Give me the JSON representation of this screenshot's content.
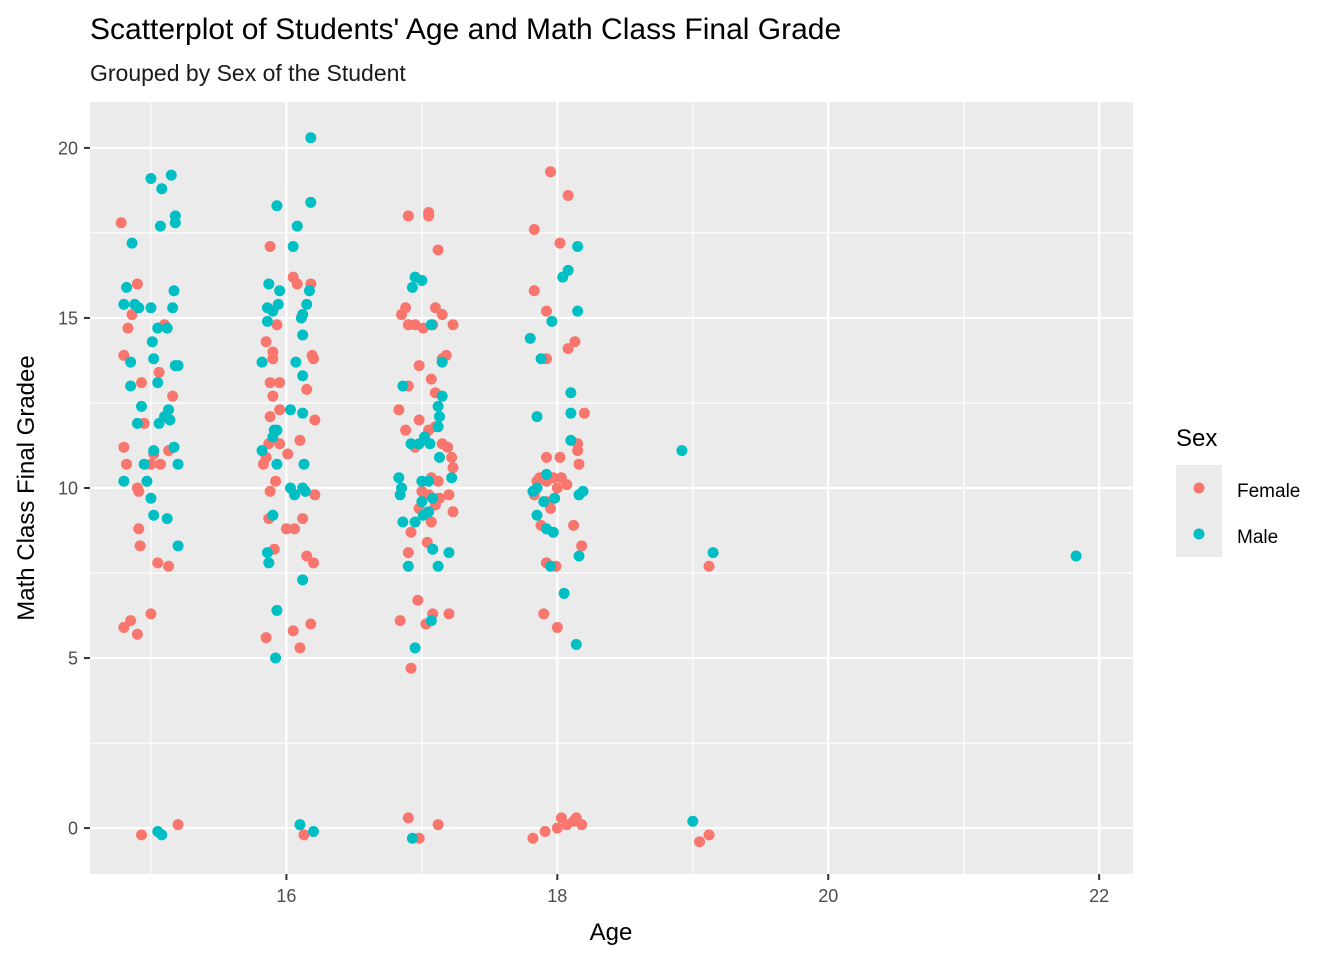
{
  "chart_data": {
    "type": "scatter",
    "title": "Scatterplot of Students' Age and Math Class Final Grade",
    "subtitle": "Grouped by Sex of the Student",
    "xlabel": "Age",
    "ylabel": "Math Class Final Gradee",
    "xlim": [
      14.55,
      22.25
    ],
    "ylim": [
      -1.35,
      21.35
    ],
    "xticks": [
      16,
      18,
      20,
      22
    ],
    "yticks": [
      0,
      5,
      10,
      15,
      20
    ],
    "grid": true,
    "legend": {
      "title": "Sex",
      "position": "right",
      "entries": [
        {
          "label": "Female",
          "color": "#F8766D"
        },
        {
          "label": "Male",
          "color": "#00BFC4"
        }
      ]
    },
    "series": [
      {
        "name": "Female",
        "color": "#F8766D",
        "points": [
          [
            14.78,
            17.8
          ],
          [
            14.86,
            15.1
          ],
          [
            14.9,
            16.0
          ],
          [
            14.83,
            14.7
          ],
          [
            15.1,
            14.8
          ],
          [
            14.8,
            13.9
          ],
          [
            15.06,
            13.4
          ],
          [
            15.16,
            12.7
          ],
          [
            14.93,
            13.1
          ],
          [
            14.95,
            11.9
          ],
          [
            14.8,
            11.2
          ],
          [
            15.02,
            11.0
          ],
          [
            15.13,
            11.1
          ],
          [
            14.82,
            10.7
          ],
          [
            15.0,
            10.7
          ],
          [
            15.07,
            10.7
          ],
          [
            14.9,
            10.0
          ],
          [
            14.91,
            9.9
          ],
          [
            14.91,
            8.8
          ],
          [
            14.92,
            8.3
          ],
          [
            15.05,
            7.8
          ],
          [
            15.13,
            7.7
          ],
          [
            14.85,
            6.1
          ],
          [
            15.0,
            6.3
          ],
          [
            14.8,
            5.9
          ],
          [
            14.9,
            5.7
          ],
          [
            14.93,
            -0.2
          ],
          [
            15.2,
            0.1
          ],
          [
            16.05,
            16.2
          ],
          [
            16.08,
            16.0
          ],
          [
            16.18,
            16.0
          ],
          [
            15.93,
            14.8
          ],
          [
            15.85,
            14.3
          ],
          [
            15.9,
            14.0
          ],
          [
            15.9,
            13.8
          ],
          [
            16.19,
            13.9
          ],
          [
            16.2,
            13.8
          ],
          [
            15.88,
            13.1
          ],
          [
            15.95,
            13.1
          ],
          [
            15.9,
            12.7
          ],
          [
            16.15,
            12.9
          ],
          [
            15.88,
            12.1
          ],
          [
            15.95,
            12.3
          ],
          [
            16.21,
            12.0
          ],
          [
            15.87,
            11.3
          ],
          [
            15.95,
            11.3
          ],
          [
            16.1,
            11.4
          ],
          [
            15.85,
            10.9
          ],
          [
            16.01,
            11.0
          ],
          [
            15.83,
            10.7
          ],
          [
            15.92,
            10.2
          ],
          [
            15.88,
            9.9
          ],
          [
            16.21,
            9.8
          ],
          [
            15.87,
            9.1
          ],
          [
            16.12,
            9.1
          ],
          [
            16.0,
            8.8
          ],
          [
            16.06,
            8.8
          ],
          [
            15.91,
            8.2
          ],
          [
            16.15,
            8.0
          ],
          [
            16.2,
            7.8
          ],
          [
            16.18,
            6.0
          ],
          [
            16.05,
            5.8
          ],
          [
            15.85,
            5.6
          ],
          [
            16.1,
            5.3
          ],
          [
            16.13,
            -0.2
          ],
          [
            15.88,
            17.1
          ],
          [
            17.05,
            18.1
          ],
          [
            16.9,
            18.0
          ],
          [
            17.05,
            18.0
          ],
          [
            17.12,
            17.0
          ],
          [
            16.88,
            15.3
          ],
          [
            16.85,
            15.1
          ],
          [
            17.1,
            15.3
          ],
          [
            17.15,
            15.1
          ],
          [
            17.08,
            14.8
          ],
          [
            17.23,
            14.8
          ],
          [
            16.9,
            14.8
          ],
          [
            17.01,
            14.7
          ],
          [
            16.95,
            14.8
          ],
          [
            17.18,
            13.9
          ],
          [
            16.98,
            13.6
          ],
          [
            17.15,
            13.8
          ],
          [
            17.07,
            13.2
          ],
          [
            16.9,
            13.0
          ],
          [
            17.1,
            12.8
          ],
          [
            16.83,
            12.3
          ],
          [
            16.98,
            12.0
          ],
          [
            17.1,
            11.8
          ],
          [
            17.05,
            11.7
          ],
          [
            16.88,
            11.7
          ],
          [
            16.95,
            11.2
          ],
          [
            17.15,
            11.3
          ],
          [
            17.19,
            11.2
          ],
          [
            17.22,
            10.9
          ],
          [
            17.23,
            10.6
          ],
          [
            17.07,
            10.3
          ],
          [
            17.12,
            10.2
          ],
          [
            17.0,
            9.9
          ],
          [
            17.05,
            9.8
          ],
          [
            17.13,
            9.7
          ],
          [
            17.2,
            9.8
          ],
          [
            17.1,
            9.5
          ],
          [
            16.98,
            9.4
          ],
          [
            17.23,
            9.3
          ],
          [
            17.07,
            9.0
          ],
          [
            16.92,
            8.7
          ],
          [
            17.04,
            8.4
          ],
          [
            16.9,
            8.1
          ],
          [
            16.97,
            6.7
          ],
          [
            16.84,
            6.1
          ],
          [
            17.03,
            6.0
          ],
          [
            17.08,
            6.3
          ],
          [
            17.2,
            6.3
          ],
          [
            16.92,
            4.7
          ],
          [
            16.9,
            0.3
          ],
          [
            17.12,
            0.1
          ],
          [
            16.98,
            -0.3
          ],
          [
            17.95,
            19.3
          ],
          [
            18.08,
            18.6
          ],
          [
            17.83,
            17.6
          ],
          [
            18.02,
            17.2
          ],
          [
            17.83,
            15.8
          ],
          [
            17.92,
            15.2
          ],
          [
            18.13,
            14.3
          ],
          [
            18.08,
            14.1
          ],
          [
            17.92,
            13.8
          ],
          [
            18.2,
            12.2
          ],
          [
            18.15,
            11.3
          ],
          [
            18.15,
            11.1
          ],
          [
            17.92,
            10.9
          ],
          [
            18.02,
            10.9
          ],
          [
            17.87,
            10.3
          ],
          [
            17.92,
            10.2
          ],
          [
            17.97,
            10.3
          ],
          [
            18.03,
            10.3
          ],
          [
            17.85,
            10.2
          ],
          [
            18.07,
            10.1
          ],
          [
            18.0,
            10.0
          ],
          [
            18.16,
            10.7
          ],
          [
            17.83,
            9.8
          ],
          [
            17.92,
            9.6
          ],
          [
            17.95,
            9.4
          ],
          [
            17.88,
            8.9
          ],
          [
            18.12,
            8.9
          ],
          [
            18.18,
            8.3
          ],
          [
            17.92,
            7.8
          ],
          [
            17.99,
            7.7
          ],
          [
            17.9,
            6.3
          ],
          [
            18.0,
            5.9
          ],
          [
            18.03,
            0.3
          ],
          [
            18.12,
            0.2
          ],
          [
            18.14,
            0.3
          ],
          [
            18.18,
            0.1
          ],
          [
            18.07,
            0.1
          ],
          [
            18.0,
            0.0
          ],
          [
            17.91,
            -0.1
          ],
          [
            17.82,
            -0.3
          ],
          [
            19.12,
            -0.2
          ],
          [
            19.05,
            -0.4
          ],
          [
            19.12,
            7.7
          ]
        ]
      },
      {
        "name": "Male",
        "color": "#00BFC4",
        "points": [
          [
            15.15,
            19.2
          ],
          [
            15.0,
            19.1
          ],
          [
            15.08,
            18.8
          ],
          [
            15.18,
            18.0
          ],
          [
            15.18,
            17.8
          ],
          [
            15.07,
            17.7
          ],
          [
            14.86,
            17.2
          ],
          [
            15.17,
            15.8
          ],
          [
            14.82,
            15.9
          ],
          [
            14.8,
            15.4
          ],
          [
            14.88,
            15.4
          ],
          [
            14.91,
            15.3
          ],
          [
            15.0,
            15.3
          ],
          [
            15.16,
            15.3
          ],
          [
            15.05,
            14.7
          ],
          [
            15.12,
            14.7
          ],
          [
            15.01,
            14.3
          ],
          [
            15.02,
            13.8
          ],
          [
            14.85,
            13.7
          ],
          [
            15.18,
            13.6
          ],
          [
            15.2,
            13.6
          ],
          [
            14.85,
            13.0
          ],
          [
            15.05,
            13.1
          ],
          [
            14.93,
            12.4
          ],
          [
            15.13,
            12.3
          ],
          [
            15.1,
            12.1
          ],
          [
            15.14,
            12.0
          ],
          [
            15.06,
            11.9
          ],
          [
            14.9,
            11.9
          ],
          [
            15.02,
            11.1
          ],
          [
            15.17,
            11.2
          ],
          [
            14.95,
            10.7
          ],
          [
            15.2,
            10.7
          ],
          [
            14.8,
            10.2
          ],
          [
            14.97,
            10.2
          ],
          [
            15.0,
            9.7
          ],
          [
            15.02,
            9.2
          ],
          [
            15.12,
            9.1
          ],
          [
            15.2,
            8.3
          ],
          [
            15.05,
            -0.1
          ],
          [
            15.08,
            -0.2
          ],
          [
            16.18,
            20.3
          ],
          [
            16.18,
            18.4
          ],
          [
            15.93,
            18.3
          ],
          [
            16.08,
            17.7
          ],
          [
            16.05,
            17.1
          ],
          [
            15.87,
            16.0
          ],
          [
            15.95,
            15.8
          ],
          [
            16.17,
            15.8
          ],
          [
            15.86,
            15.3
          ],
          [
            15.94,
            15.4
          ],
          [
            16.15,
            15.4
          ],
          [
            15.9,
            15.2
          ],
          [
            16.12,
            15.1
          ],
          [
            16.11,
            15.0
          ],
          [
            15.86,
            14.9
          ],
          [
            16.12,
            14.5
          ],
          [
            15.82,
            13.7
          ],
          [
            16.07,
            13.7
          ],
          [
            16.12,
            13.3
          ],
          [
            16.03,
            12.3
          ],
          [
            16.12,
            12.2
          ],
          [
            15.91,
            11.7
          ],
          [
            15.93,
            11.7
          ],
          [
            15.82,
            11.1
          ],
          [
            15.9,
            11.5
          ],
          [
            15.93,
            10.7
          ],
          [
            16.13,
            10.7
          ],
          [
            16.03,
            10.0
          ],
          [
            16.12,
            10.0
          ],
          [
            16.14,
            9.9
          ],
          [
            16.06,
            9.8
          ],
          [
            15.9,
            9.2
          ],
          [
            15.86,
            8.1
          ],
          [
            15.87,
            7.8
          ],
          [
            16.12,
            7.3
          ],
          [
            15.93,
            6.4
          ],
          [
            15.92,
            5.0
          ],
          [
            16.1,
            0.1
          ],
          [
            16.2,
            -0.1
          ],
          [
            16.95,
            16.2
          ],
          [
            17.0,
            16.1
          ],
          [
            16.93,
            15.9
          ],
          [
            17.07,
            14.8
          ],
          [
            17.15,
            13.7
          ],
          [
            16.86,
            13.0
          ],
          [
            17.15,
            12.7
          ],
          [
            17.12,
            12.4
          ],
          [
            17.13,
            12.1
          ],
          [
            17.12,
            11.8
          ],
          [
            16.98,
            11.3
          ],
          [
            16.92,
            11.3
          ],
          [
            17.06,
            11.3
          ],
          [
            17.02,
            11.5
          ],
          [
            17.13,
            10.9
          ],
          [
            16.83,
            10.3
          ],
          [
            17.22,
            10.3
          ],
          [
            16.85,
            10.0
          ],
          [
            17.0,
            10.2
          ],
          [
            17.05,
            10.2
          ],
          [
            16.84,
            9.8
          ],
          [
            17.0,
            9.6
          ],
          [
            17.08,
            9.7
          ],
          [
            17.05,
            9.3
          ],
          [
            17.01,
            9.2
          ],
          [
            16.86,
            9.0
          ],
          [
            16.95,
            9.0
          ],
          [
            17.2,
            8.1
          ],
          [
            17.08,
            8.2
          ],
          [
            17.12,
            7.7
          ],
          [
            16.9,
            7.7
          ],
          [
            17.07,
            6.1
          ],
          [
            16.95,
            5.3
          ],
          [
            16.93,
            -0.3
          ],
          [
            18.15,
            17.1
          ],
          [
            18.08,
            16.4
          ],
          [
            18.04,
            16.2
          ],
          [
            18.15,
            15.2
          ],
          [
            17.96,
            14.9
          ],
          [
            17.8,
            14.4
          ],
          [
            17.88,
            13.8
          ],
          [
            17.85,
            12.1
          ],
          [
            18.1,
            12.8
          ],
          [
            18.1,
            12.2
          ],
          [
            18.1,
            11.4
          ],
          [
            17.85,
            10.0
          ],
          [
            17.92,
            10.4
          ],
          [
            18.19,
            9.9
          ],
          [
            18.16,
            9.8
          ],
          [
            17.82,
            9.9
          ],
          [
            17.98,
            9.7
          ],
          [
            17.9,
            9.6
          ],
          [
            17.85,
            9.2
          ],
          [
            17.92,
            8.8
          ],
          [
            17.97,
            8.7
          ],
          [
            18.16,
            8.0
          ],
          [
            17.95,
            7.7
          ],
          [
            18.05,
            6.9
          ],
          [
            18.14,
            5.4
          ],
          [
            18.92,
            11.1
          ],
          [
            19.15,
            8.1
          ],
          [
            19.0,
            0.2
          ],
          [
            21.83,
            8.0
          ]
        ]
      }
    ]
  }
}
